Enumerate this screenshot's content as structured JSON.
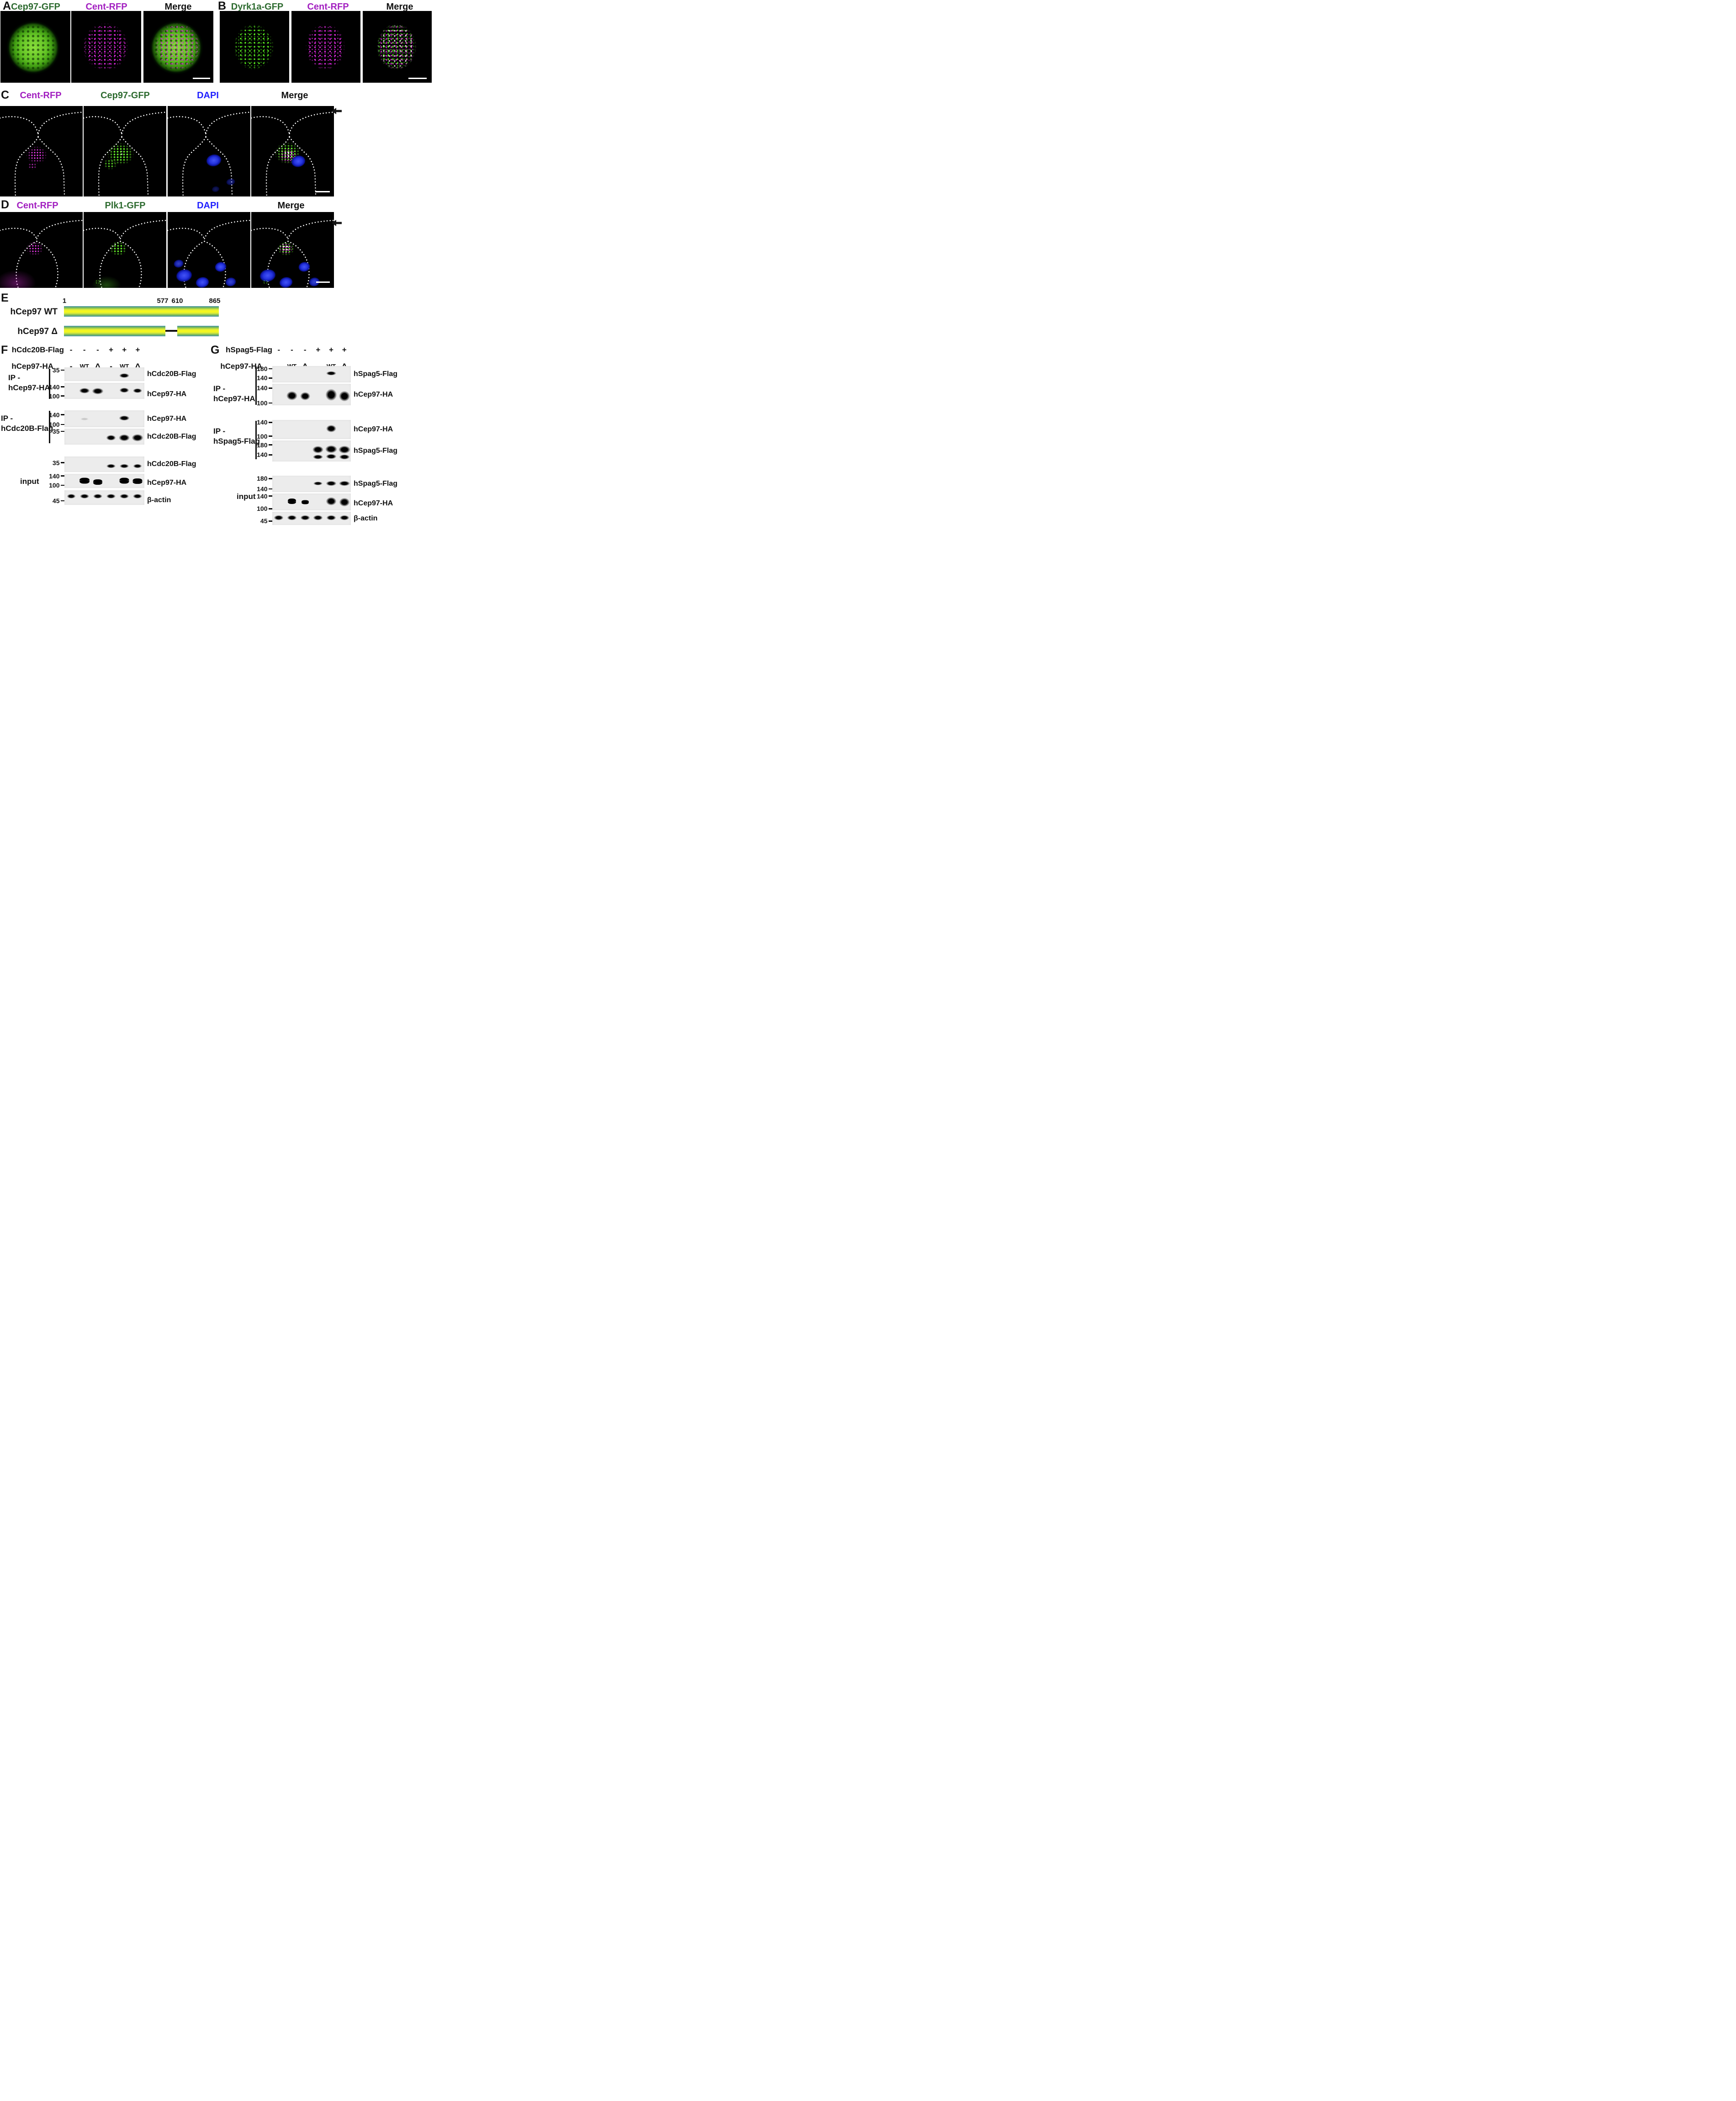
{
  "colors": {
    "gfp_label": "#2e6b30",
    "rfp_label": "#a21fc0",
    "dapi_label": "#1f1fff",
    "text": "#111111",
    "microscopy_green": "#58e61f",
    "microscopy_magenta": "#e82ce8",
    "dapi_blue": "#2433de",
    "domain_bar_edge": "#4494ad",
    "domain_bar_center": "#f5f71d"
  },
  "a": {
    "letter": "A",
    "labels": [
      {
        "text": "Cep97-GFP"
      },
      {
        "text": "Cent-RFP"
      },
      {
        "text": "Merge"
      }
    ]
  },
  "b": {
    "letter": "B",
    "labels": [
      {
        "text": "Dyrk1a-GFP"
      },
      {
        "text": "Cent-RFP"
      },
      {
        "text": "Merge"
      }
    ]
  },
  "c": {
    "letter": "C",
    "labels": [
      {
        "text": "Cent-RFP"
      },
      {
        "text": "Cep97-GFP"
      },
      {
        "text": "DAPI"
      },
      {
        "text": "Merge"
      }
    ]
  },
  "d": {
    "letter": "D",
    "labels": [
      {
        "text": "Cent-RFP"
      },
      {
        "text": "Plk1-GFP"
      },
      {
        "text": "DAPI"
      },
      {
        "text": "Merge"
      }
    ]
  },
  "e": {
    "letter": "E",
    "positions": [
      "1",
      "577",
      "610",
      "865"
    ],
    "rows": [
      {
        "name": "hCep97 WT"
      },
      {
        "name": "hCep97 Δ"
      }
    ]
  },
  "f": {
    "letter": "F",
    "header": [
      {
        "label": "hCdc20B-Flag",
        "symbols": [
          "-",
          "-",
          "-",
          "+",
          "+",
          "+"
        ]
      },
      {
        "label": "hCep97-HA",
        "symbols": [
          "-",
          "WT",
          "Δ",
          "-",
          "WT",
          "Δ"
        ]
      }
    ],
    "ip1": {
      "line1": "IP -",
      "line2": "hCep97-HA",
      "blots": [
        {
          "label": "hCdc20B-Flag",
          "markers": [
            {
              "label": "35",
              "y": 20
            }
          ],
          "bands": [
            {
              "lane": 5,
              "y": 60,
              "w": 22,
              "h": 10
            }
          ]
        },
        {
          "label": "hCep97-HA",
          "markers": [
            {
              "label": "140",
              "y": 25
            },
            {
              "label": "100",
              "y": 82
            }
          ],
          "bands": [
            {
              "lane": 2,
              "y": 48,
              "w": 23,
              "h": 12
            },
            {
              "lane": 3,
              "y": 52,
              "w": 25,
              "h": 14
            },
            {
              "lane": 5,
              "y": 46,
              "w": 21,
              "h": 11
            },
            {
              "lane": 6,
              "y": 49,
              "w": 20,
              "h": 10
            }
          ]
        }
      ]
    },
    "ip2": {
      "line1": "IP -",
      "line2": "hCdc20B-Flag",
      "blots": [
        {
          "label": "hCep97-HA",
          "markers": [
            {
              "label": "140",
              "y": 26
            },
            {
              "label": "100",
              "y": 84
            }
          ],
          "bands": [
            {
              "lane": 5,
              "y": 45,
              "w": 23,
              "h": 11
            },
            {
              "lane": 2,
              "y": 50,
              "w": 18,
              "h": 6,
              "o": 0.15
            }
          ]
        },
        {
          "label": "hCdc20B-Flag",
          "markers": [
            {
              "label": "35",
              "y": 17
            }
          ],
          "bands": [
            {
              "lane": 4,
              "y": 58,
              "w": 21,
              "h": 12
            },
            {
              "lane": 5,
              "y": 56,
              "w": 24,
              "h": 15
            },
            {
              "lane": 6,
              "y": 58,
              "w": 25,
              "h": 16
            }
          ]
        }
      ]
    },
    "input": {
      "line1": "input",
      "blots": [
        {
          "label": "hCdc20B-Flag",
          "markers": [
            {
              "label": "35",
              "y": 40
            }
          ],
          "bands": [
            {
              "lane": 4,
              "y": 62,
              "w": 20,
              "h": 9
            },
            {
              "lane": 5,
              "y": 62,
              "w": 20,
              "h": 9
            },
            {
              "lane": 6,
              "y": 62,
              "w": 19,
              "h": 9
            }
          ]
        },
        {
          "label": "hCep97-HA",
          "markers": [
            {
              "label": "140",
              "y": 15
            },
            {
              "label": "100",
              "y": 80
            }
          ],
          "bands": [
            {
              "lane": 2,
              "y": 48,
              "w": 22,
              "h": 13,
              "d": 1
            },
            {
              "lane": 3,
              "y": 58,
              "w": 20,
              "h": 12,
              "d": 1
            },
            {
              "lane": 5,
              "y": 48,
              "w": 21,
              "h": 13,
              "d": 1
            },
            {
              "lane": 6,
              "y": 53,
              "w": 21,
              "h": 12,
              "d": 1
            }
          ]
        },
        {
          "label": "β-actin",
          "markers": [
            {
              "label": "45",
              "y": 72
            }
          ],
          "bands": [
            {
              "lane": 1,
              "y": 42,
              "w": 19,
              "h": 10
            },
            {
              "lane": 2,
              "y": 42,
              "w": 20,
              "h": 10
            },
            {
              "lane": 3,
              "y": 42,
              "w": 20,
              "h": 10
            },
            {
              "lane": 4,
              "y": 42,
              "w": 20,
              "h": 10
            },
            {
              "lane": 5,
              "y": 42,
              "w": 20,
              "h": 10
            },
            {
              "lane": 6,
              "y": 42,
              "w": 20,
              "h": 10
            }
          ]
        }
      ]
    }
  },
  "g": {
    "letter": "G",
    "header": [
      {
        "label": "hSpag5-Flag",
        "symbols": [
          "-",
          "-",
          "-",
          "+",
          "+",
          "+"
        ]
      },
      {
        "label": "hCep97-HA",
        "symbols": [
          "-",
          "WT",
          "Δ",
          "-",
          "WT",
          "Δ"
        ]
      }
    ],
    "ip1": {
      "line1": "IP -",
      "line2": "hCep97-HA",
      "blots": [
        {
          "label": "hSpag5-Flag",
          "markers": [
            {
              "label": "180",
              "y": 17
            },
            {
              "label": "140",
              "y": 73
            }
          ],
          "bands": [
            {
              "lane": 5,
              "y": 45,
              "w": 22,
              "h": 9
            }
          ]
        },
        {
          "label": "hCep97-HA",
          "markers": [
            {
              "label": "140",
              "y": 20
            },
            {
              "label": "100",
              "y": 89
            }
          ],
          "bands": [
            {
              "lane": 2,
              "y": 55,
              "w": 24,
              "h": 20
            },
            {
              "lane": 3,
              "y": 58,
              "w": 22,
              "h": 18
            },
            {
              "lane": 5,
              "y": 52,
              "w": 25,
              "h": 26
            },
            {
              "lane": 6,
              "y": 57,
              "w": 24,
              "h": 23
            }
          ]
        }
      ]
    },
    "ip2": {
      "line1": "IP -",
      "line2": "hSpag5-Flag",
      "blots": [
        {
          "label": "hCep97-HA",
          "markers": [
            {
              "label": "140",
              "y": 13
            },
            {
              "label": "100",
              "y": 85
            }
          ],
          "bands": [
            {
              "lane": 5,
              "y": 45,
              "w": 22,
              "h": 16
            }
          ]
        },
        {
          "label": "hSpag5-Flag",
          "markers": [
            {
              "label": "180",
              "y": 21
            },
            {
              "label": "140",
              "y": 68
            }
          ],
          "bands": [
            {
              "lane": 4,
              "y": 44,
              "w": 24,
              "h": 16
            },
            {
              "lane": 5,
              "y": 42,
              "w": 26,
              "h": 17
            },
            {
              "lane": 6,
              "y": 44,
              "w": 26,
              "h": 17
            },
            {
              "lane": 4,
              "y": 78,
              "w": 22,
              "h": 10
            },
            {
              "lane": 5,
              "y": 77,
              "w": 23,
              "h": 11
            },
            {
              "lane": 6,
              "y": 78,
              "w": 23,
              "h": 11
            }
          ]
        }
      ]
    },
    "input": {
      "line1": "input",
      "blots": [
        {
          "label": "hSpag5-Flag",
          "markers": [
            {
              "label": "180",
              "y": 18
            },
            {
              "label": "140",
              "y": 80
            }
          ],
          "bands": [
            {
              "lane": 4,
              "y": 48,
              "w": 20,
              "h": 8
            },
            {
              "lane": 5,
              "y": 47,
              "w": 23,
              "h": 11
            },
            {
              "lane": 6,
              "y": 48,
              "w": 24,
              "h": 11
            }
          ]
        },
        {
          "label": "hCep97-HA",
          "markers": [
            {
              "label": "140",
              "y": 15
            },
            {
              "label": "100",
              "y": 90
            }
          ],
          "bands": [
            {
              "lane": 2,
              "y": 46,
              "w": 18,
              "h": 12,
              "d": 1
            },
            {
              "lane": 3,
              "y": 52,
              "w": 16,
              "h": 9,
              "d": 1
            },
            {
              "lane": 5,
              "y": 46,
              "w": 23,
              "h": 18
            },
            {
              "lane": 6,
              "y": 52,
              "w": 23,
              "h": 19
            }
          ]
        },
        {
          "label": "β-actin",
          "markers": [
            {
              "label": "45",
              "y": 70
            }
          ],
          "bands": [
            {
              "lane": 1,
              "y": 45,
              "w": 21,
              "h": 11
            },
            {
              "lane": 2,
              "y": 45,
              "w": 21,
              "h": 11
            },
            {
              "lane": 3,
              "y": 45,
              "w": 21,
              "h": 11
            },
            {
              "lane": 4,
              "y": 45,
              "w": 21,
              "h": 11
            },
            {
              "lane": 5,
              "y": 45,
              "w": 21,
              "h": 11
            },
            {
              "lane": 6,
              "y": 45,
              "w": 21,
              "h": 11
            }
          ]
        }
      ]
    }
  }
}
